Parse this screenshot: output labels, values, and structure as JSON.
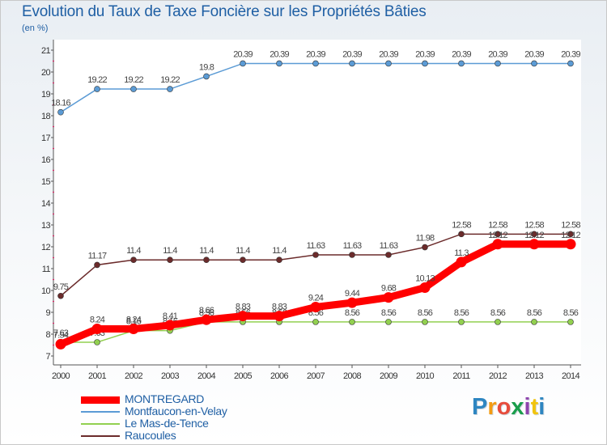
{
  "header": {
    "title": "Evolution du Taux de Taxe Foncière sur les Propriétés Bâties",
    "unit": "(en %)"
  },
  "logo": {
    "letters": [
      "P",
      "r",
      "o",
      "x",
      "i",
      "t",
      "i"
    ],
    "colors": [
      "#2e86c1",
      "#f39c12",
      "#e74c3c",
      "#1a9e4b",
      "#8e44ad",
      "#f1c40f",
      "#2e86c1"
    ]
  },
  "chart_data": {
    "type": "line",
    "title": "Evolution du Taux de Taxe Foncière sur les Propriétés Bâties",
    "ylabel": "(en %)",
    "xlabel": "",
    "ylim": [
      7,
      21
    ],
    "yticks": [
      7,
      8,
      9,
      10,
      11,
      12,
      13,
      14,
      15,
      16,
      17,
      18,
      19,
      20,
      21
    ],
    "x": [
      "2000",
      "2001",
      "2002",
      "2003",
      "2004",
      "2005",
      "2006",
      "2007",
      "2008",
      "2009",
      "2010",
      "2011",
      "2012",
      "2013",
      "2014"
    ],
    "grid": false,
    "legend_position": "bottom-left",
    "series": [
      {
        "name": "Montfaucon-en-Velay",
        "color": "#5b9bd5",
        "thick": false,
        "values": [
          18.16,
          19.22,
          19.22,
          19.22,
          19.8,
          20.39,
          20.39,
          20.39,
          20.39,
          20.39,
          20.39,
          20.39,
          20.39,
          20.39,
          20.39
        ],
        "labels": [
          "18.16",
          "19.22",
          "19.22",
          "19.22",
          "19.8",
          "20.39",
          "20.39",
          "20.39",
          "20.39",
          "20.39",
          "20.39",
          "20.39",
          "20.39",
          "20.39",
          "20.39"
        ]
      },
      {
        "name": "Raucoules",
        "color": "#6b2b2b",
        "thick": false,
        "values": [
          9.75,
          11.17,
          11.4,
          11.4,
          11.4,
          11.4,
          11.4,
          11.63,
          11.63,
          11.63,
          11.98,
          12.58,
          12.58,
          12.58,
          12.58
        ],
        "labels": [
          "9.75",
          "11.17",
          "11.4",
          "11.4",
          "11.4",
          "11.4",
          "11.4",
          "11.63",
          "11.63",
          "11.63",
          "11.98",
          "12.58",
          "12.58",
          "12.58",
          "12.58"
        ]
      },
      {
        "name": "Le Mas-de-Tence",
        "color": "#92d050",
        "thick": false,
        "values": [
          7.63,
          7.63,
          8.16,
          8.16,
          8.56,
          8.56,
          8.56,
          8.56,
          8.56,
          8.56,
          8.56,
          8.56,
          8.56,
          8.56,
          8.56
        ],
        "labels": [
          "7.63",
          "7.63",
          "8.16",
          "8.16",
          "8.56",
          "8.56",
          "8.56",
          "8.56",
          "8.56",
          "8.56",
          "8.56",
          "8.56",
          "8.56",
          "8.56",
          "8.56"
        ]
      },
      {
        "name": "MONTREGARD",
        "color": "#ff0000",
        "thick": true,
        "values": [
          7.54,
          8.24,
          8.24,
          8.41,
          8.66,
          8.83,
          8.83,
          9.24,
          9.44,
          9.68,
          10.13,
          11.3,
          12.12,
          12.12,
          12.12
        ],
        "labels": [
          "7.54",
          "8.24",
          "8.24",
          "8.41",
          "8.66",
          "8.83",
          "8.83",
          "9.24",
          "9.44",
          "9.68",
          "10.13",
          "11.3",
          "12.12",
          "12.12",
          "12.12"
        ]
      }
    ],
    "legend": [
      "MONTREGARD",
      "Montfaucon-en-Velay",
      "Le Mas-de-Tence",
      "Raucoules"
    ]
  }
}
